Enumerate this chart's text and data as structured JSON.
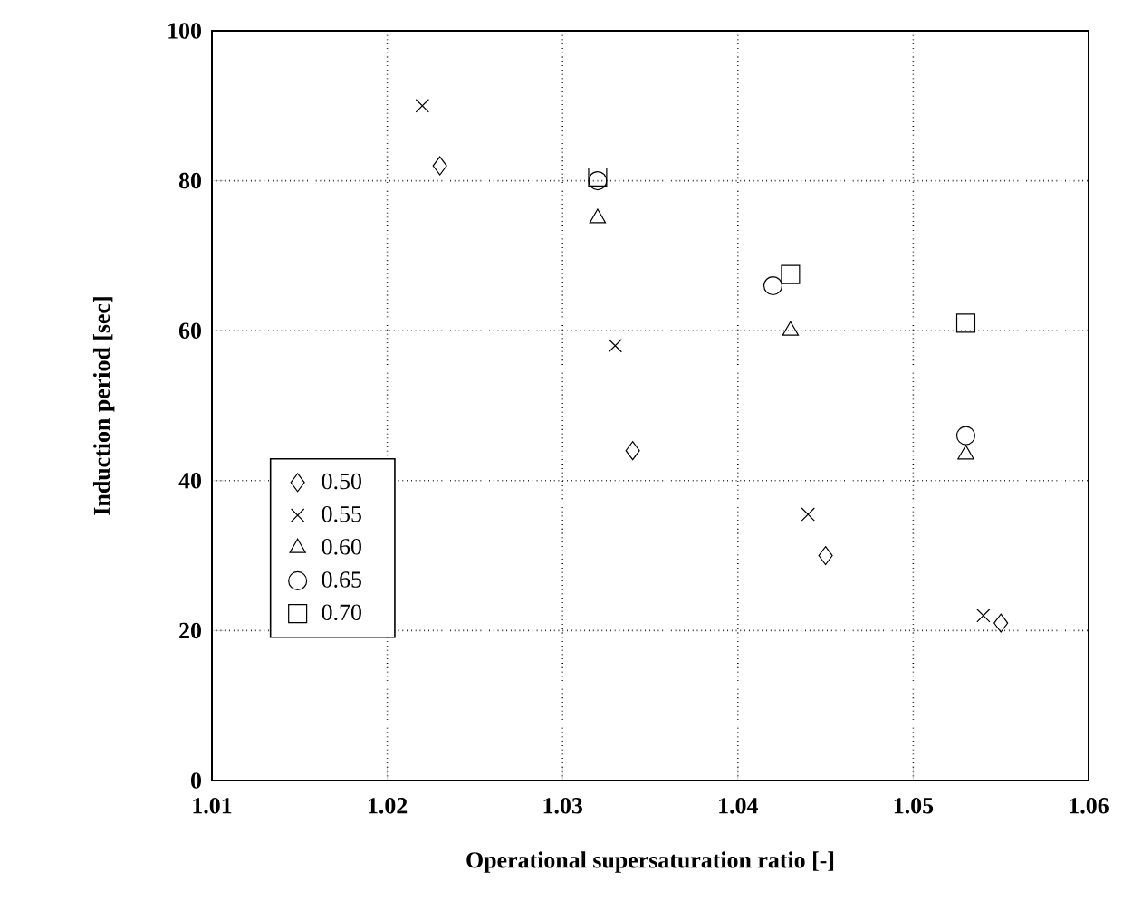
{
  "chart_data": {
    "type": "scatter",
    "xlabel": "Operational supersaturation ratio [-]",
    "ylabel": "Induction period [sec]",
    "xlim": [
      1.01,
      1.06
    ],
    "ylim": [
      0,
      100
    ],
    "xticks": [
      1.01,
      1.02,
      1.03,
      1.04,
      1.05,
      1.06
    ],
    "yticks": [
      0,
      20,
      40,
      60,
      80,
      100
    ],
    "grid": true,
    "legend": "left",
    "series": [
      {
        "name": "0.50",
        "color": "#000000",
        "marker": "diamond",
        "x": [
          1.023,
          1.034,
          1.045,
          1.055
        ],
        "values": [
          82,
          44,
          30,
          21
        ]
      },
      {
        "name": "0.55",
        "color": "#000000",
        "marker": "cross",
        "x": [
          1.022,
          1.033,
          1.044,
          1.054
        ],
        "values": [
          90,
          58,
          35.5,
          22
        ]
      },
      {
        "name": "0.60",
        "color": "#000000",
        "marker": "triangle",
        "x": [
          1.032,
          1.043,
          1.053
        ],
        "values": [
          75,
          60,
          43.5
        ]
      },
      {
        "name": "0.65",
        "color": "#000000",
        "marker": "circle",
        "x": [
          1.032,
          1.042,
          1.053
        ],
        "values": [
          80,
          66,
          46
        ]
      },
      {
        "name": "0.70",
        "color": "#000000",
        "marker": "square",
        "x": [
          1.032,
          1.043,
          1.053
        ],
        "values": [
          80.5,
          67.5,
          61
        ]
      }
    ]
  }
}
